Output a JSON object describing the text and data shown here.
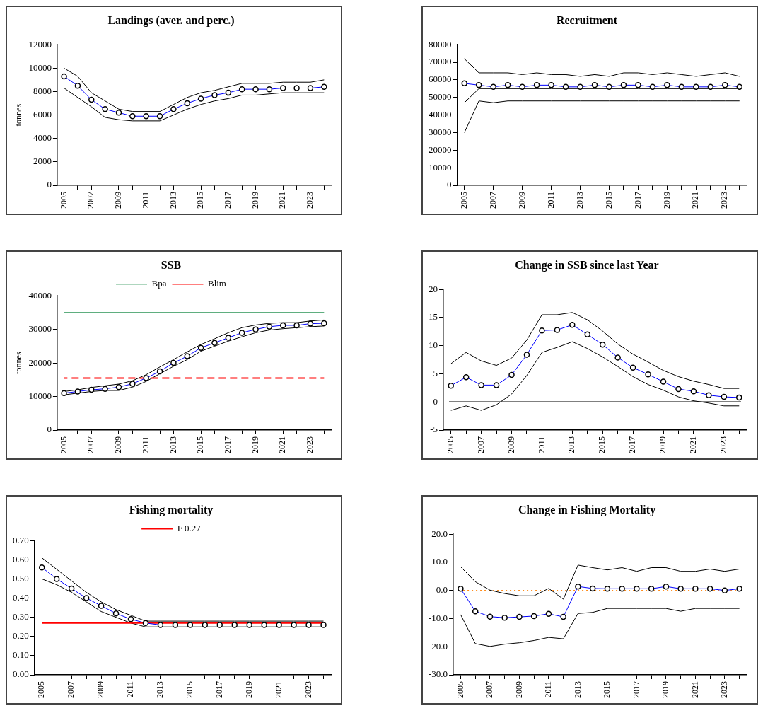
{
  "chart_data": [
    {
      "type": "line",
      "title": "Landings (aver. and perc.)",
      "ylabel": "tonnes",
      "categories": [
        "2005",
        null,
        "2007",
        null,
        "2009",
        null,
        "2011",
        null,
        "2013",
        null,
        "2015",
        null,
        "2017",
        null,
        "2019",
        null,
        "2021",
        null,
        "2023",
        null
      ],
      "ylim": [
        0,
        12000
      ],
      "yticks": [
        0,
        2000,
        4000,
        6000,
        8000,
        10000,
        12000
      ],
      "grid": false,
      "legend": false,
      "series": [
        {
          "color": "#0000ff",
          "marker": "circle",
          "values": [
            9300,
            8500,
            7300,
            6500,
            6200,
            5900,
            5900,
            5900,
            6500,
            7000,
            7400,
            7700,
            7900,
            8200,
            8200,
            8200,
            8300,
            8300,
            8300,
            8400
          ]
        },
        {
          "color": "#000000",
          "marker": "none",
          "values": [
            10000,
            9300,
            7900,
            7200,
            6500,
            6300,
            6300,
            6300,
            6900,
            7500,
            7900,
            8100,
            8400,
            8700,
            8700,
            8700,
            8800,
            8800,
            8800,
            9000
          ]
        },
        {
          "color": "#000000",
          "marker": "none",
          "values": [
            8300,
            7500,
            6700,
            5800,
            5600,
            5500,
            5500,
            5500,
            6000,
            6500,
            6900,
            7200,
            7400,
            7700,
            7700,
            7800,
            7900,
            7900,
            7900,
            7900
          ]
        }
      ]
    },
    {
      "type": "line",
      "title": "Recruitment",
      "categories": [
        "2005",
        null,
        "2007",
        null,
        "2009",
        null,
        "2011",
        null,
        "2013",
        null,
        "2015",
        null,
        "2017",
        null,
        "2019",
        null,
        "2021",
        null,
        "2023",
        null
      ],
      "ylim": [
        0,
        80000
      ],
      "yticks": [
        0,
        10000,
        20000,
        30000,
        40000,
        50000,
        60000,
        70000,
        80000
      ],
      "grid": false,
      "legend": false,
      "series": [
        {
          "color": "#0000ff",
          "marker": "circle",
          "values": [
            58000,
            57000,
            56000,
            57000,
            56000,
            57000,
            57000,
            56000,
            56000,
            57000,
            56000,
            57000,
            57000,
            56000,
            57000,
            56000,
            56000,
            56000,
            57000,
            56000
          ]
        },
        {
          "color": "#000000",
          "marker": "none",
          "values": [
            72000,
            64000,
            64000,
            64000,
            63000,
            64000,
            63000,
            63000,
            62000,
            63000,
            62000,
            64000,
            64000,
            63000,
            64000,
            63000,
            62000,
            63000,
            64000,
            62000
          ]
        },
        {
          "color": "#000000",
          "marker": "none",
          "values": [
            47000,
            55000,
            55000,
            55000,
            55000,
            55000,
            55000,
            55000,
            55000,
            55000,
            55000,
            55000,
            55000,
            55000,
            55000,
            55000,
            55000,
            55000,
            55000,
            55000
          ]
        },
        {
          "color": "#000000",
          "marker": "none",
          "values": [
            30000,
            48000,
            47000,
            48000,
            48000,
            48000,
            48000,
            48000,
            48000,
            48000,
            48000,
            48000,
            48000,
            48000,
            48000,
            48000,
            48000,
            48000,
            48000,
            48000
          ]
        }
      ]
    },
    {
      "type": "line",
      "title": "SSB",
      "ylabel": "tonnes",
      "categories": [
        "2005",
        null,
        "2007",
        null,
        "2009",
        null,
        "2011",
        null,
        "2013",
        null,
        "2015",
        null,
        "2017",
        null,
        "2019",
        null,
        "2021",
        null,
        "2023",
        null
      ],
      "ylim": [
        0,
        40000
      ],
      "yticks": [
        0,
        10000,
        20000,
        30000,
        40000
      ],
      "grid": false,
      "legend": "top",
      "series": [
        {
          "name": "Bpa",
          "color": "#5fae7f",
          "marker": "none",
          "line_style": "solid",
          "values": [
            35000,
            35000,
            35000,
            35000,
            35000,
            35000,
            35000,
            35000,
            35000,
            35000,
            35000,
            35000,
            35000,
            35000,
            35000,
            35000,
            35000,
            35000,
            35000,
            35000
          ]
        },
        {
          "name": "Blim",
          "color": "#ff0000",
          "marker": "none",
          "line_style": "dashed",
          "values": [
            15500,
            15500,
            15500,
            15500,
            15500,
            15500,
            15500,
            15500,
            15500,
            15500,
            15500,
            15500,
            15500,
            15500,
            15500,
            15500,
            15500,
            15500,
            15500,
            15500
          ]
        },
        {
          "color": "#0000ff",
          "marker": "circle",
          "values": [
            11000,
            11500,
            12000,
            12300,
            12800,
            13800,
            15500,
            17500,
            20000,
            22000,
            24500,
            26000,
            27500,
            29000,
            30000,
            30800,
            31200,
            31200,
            31700,
            31800
          ]
        },
        {
          "color": "#000000",
          "marker": "none",
          "values": [
            11500,
            12000,
            12700,
            13200,
            13700,
            14700,
            16500,
            18800,
            21000,
            23300,
            25500,
            27200,
            29000,
            30500,
            31300,
            31800,
            32000,
            32000,
            32500,
            32800
          ]
        },
        {
          "color": "#000000",
          "marker": "none",
          "values": [
            10500,
            11000,
            11500,
            11800,
            11800,
            12800,
            14500,
            16800,
            19000,
            21000,
            23500,
            25000,
            26500,
            27800,
            29000,
            29800,
            30200,
            30500,
            30800,
            31000
          ]
        }
      ]
    },
    {
      "type": "line",
      "title": "Change in SSB since last Year",
      "categories": [
        "2005",
        null,
        "2007",
        null,
        "2009",
        null,
        "2011",
        null,
        "2013",
        null,
        "2015",
        null,
        "2017",
        null,
        "2019",
        null,
        "2021",
        null,
        "2023",
        null
      ],
      "ylim": [
        -5,
        20
      ],
      "yticks": [
        -5,
        0,
        5,
        10,
        15,
        20
      ],
      "grid": false,
      "legend": false,
      "ref_lines": [
        {
          "axis": "y",
          "value": 0,
          "color": "#000000",
          "line_style": "solid"
        }
      ],
      "series": [
        {
          "color": "#0000ff",
          "marker": "circle",
          "values": [
            2.9,
            4.4,
            3.0,
            3.0,
            4.8,
            8.4,
            12.7,
            12.8,
            13.7,
            12.0,
            10.2,
            7.9,
            6.1,
            4.9,
            3.6,
            2.3,
            1.9,
            1.2,
            0.9,
            0.8
          ]
        },
        {
          "color": "#000000",
          "marker": "none",
          "values": [
            6.8,
            8.8,
            7.3,
            6.5,
            7.8,
            11.0,
            15.5,
            15.5,
            15.9,
            14.6,
            12.6,
            10.3,
            8.5,
            7.1,
            5.6,
            4.5,
            3.7,
            3.1,
            2.4,
            2.4
          ]
        },
        {
          "color": "#000000",
          "marker": "none",
          "values": [
            -1.5,
            -0.7,
            -1.5,
            -0.5,
            1.4,
            4.7,
            8.8,
            9.7,
            10.7,
            9.5,
            8.0,
            6.3,
            4.5,
            3.1,
            2.1,
            0.9,
            0.2,
            -0.2,
            -0.7,
            -0.7
          ]
        }
      ]
    },
    {
      "type": "line",
      "title": "Fishing mortality",
      "categories": [
        "2005",
        null,
        "2007",
        null,
        "2009",
        null,
        "2011",
        null,
        "2013",
        null,
        "2015",
        null,
        "2017",
        null,
        "2019",
        null,
        "2021",
        null,
        "2023",
        null
      ],
      "ylim": [
        0,
        0.7
      ],
      "yticks": [
        {
          "value": 0,
          "label": "0.00"
        },
        {
          "value": 0.1,
          "label": "0.10"
        },
        {
          "value": 0.2,
          "label": "0.20"
        },
        {
          "value": 0.3,
          "label": "0.30"
        },
        {
          "value": 0.4,
          "label": "0.40"
        },
        {
          "value": 0.5,
          "label": "0.50"
        },
        {
          "value": 0.6,
          "label": "0.60"
        },
        {
          "value": 0.7,
          "label": "0.70"
        }
      ],
      "grid": false,
      "legend": "top",
      "series": [
        {
          "name": "F 0.27",
          "color": "#ff0000",
          "marker": "none",
          "line_style": "solid",
          "values": [
            0.27,
            0.27,
            0.27,
            0.27,
            0.27,
            0.27,
            0.27,
            0.27,
            0.27,
            0.27,
            0.27,
            0.27,
            0.27,
            0.27,
            0.27,
            0.27,
            0.27,
            0.27,
            0.27,
            0.27
          ]
        },
        {
          "color": "#0000ff",
          "marker": "circle",
          "values": [
            0.56,
            0.5,
            0.45,
            0.4,
            0.36,
            0.32,
            0.29,
            0.27,
            0.26,
            0.26,
            0.26,
            0.26,
            0.26,
            0.26,
            0.26,
            0.26,
            0.26,
            0.26,
            0.26,
            0.26
          ]
        },
        {
          "color": "#000000",
          "marker": "none",
          "values": [
            0.61,
            0.55,
            0.49,
            0.43,
            0.38,
            0.34,
            0.31,
            0.28,
            0.28,
            0.28,
            0.28,
            0.28,
            0.28,
            0.28,
            0.28,
            0.28,
            0.28,
            0.28,
            0.28,
            0.28
          ]
        },
        {
          "color": "#000000",
          "marker": "none",
          "values": [
            0.5,
            0.47,
            0.43,
            0.38,
            0.33,
            0.3,
            0.27,
            0.25,
            0.25,
            0.25,
            0.25,
            0.25,
            0.25,
            0.25,
            0.25,
            0.25,
            0.25,
            0.25,
            0.25,
            0.25
          ]
        }
      ]
    },
    {
      "type": "line",
      "title": "Change in Fishing Mortality",
      "categories": [
        "2005",
        null,
        "2007",
        null,
        "2009",
        null,
        "2011",
        null,
        "2013",
        null,
        "2015",
        null,
        "2017",
        null,
        "2019",
        null,
        "2021",
        null,
        "2023",
        null
      ],
      "ylim": [
        -30,
        20
      ],
      "yticks": [
        {
          "value": -30,
          "label": "-30.0"
        },
        {
          "value": -20,
          "label": "-20.0"
        },
        {
          "value": -10,
          "label": "-10.0"
        },
        {
          "value": 0,
          "label": "0.0"
        },
        {
          "value": 10,
          "label": "10.0"
        },
        {
          "value": 20,
          "label": "20.0"
        }
      ],
      "grid": false,
      "legend": false,
      "ref_lines": [
        {
          "axis": "y",
          "value": 0,
          "color": "#ff8c1a",
          "line_style": "dotted"
        }
      ],
      "series": [
        {
          "color": "#0000ff",
          "marker": "circle",
          "values": [
            0.6,
            -7.4,
            -9.3,
            -9.7,
            -9.4,
            -9.1,
            -8.3,
            -9.4,
            1.4,
            0.7,
            0.6,
            0.6,
            0.6,
            0.6,
            1.4,
            0.6,
            0.6,
            0.6,
            0,
            0.6
          ]
        },
        {
          "color": "#000000",
          "marker": "none",
          "values": [
            8.4,
            3.1,
            0.1,
            -1.1,
            -1.9,
            -1.9,
            0.7,
            -3.1,
            9.0,
            8.1,
            7.3,
            8.1,
            6.8,
            8.1,
            8.1,
            6.8,
            6.8,
            7.6,
            6.8,
            7.6
          ]
        },
        {
          "color": "#000000",
          "marker": "none",
          "values": [
            -8.6,
            -18.9,
            -19.9,
            -19.1,
            -18.6,
            -17.8,
            -16.7,
            -17.2,
            -8.2,
            -7.8,
            -6.4,
            -6.4,
            -6.4,
            -6.4,
            -6.4,
            -7.4,
            -6.4,
            -6.4,
            -6.4,
            -6.4
          ]
        }
      ]
    }
  ]
}
